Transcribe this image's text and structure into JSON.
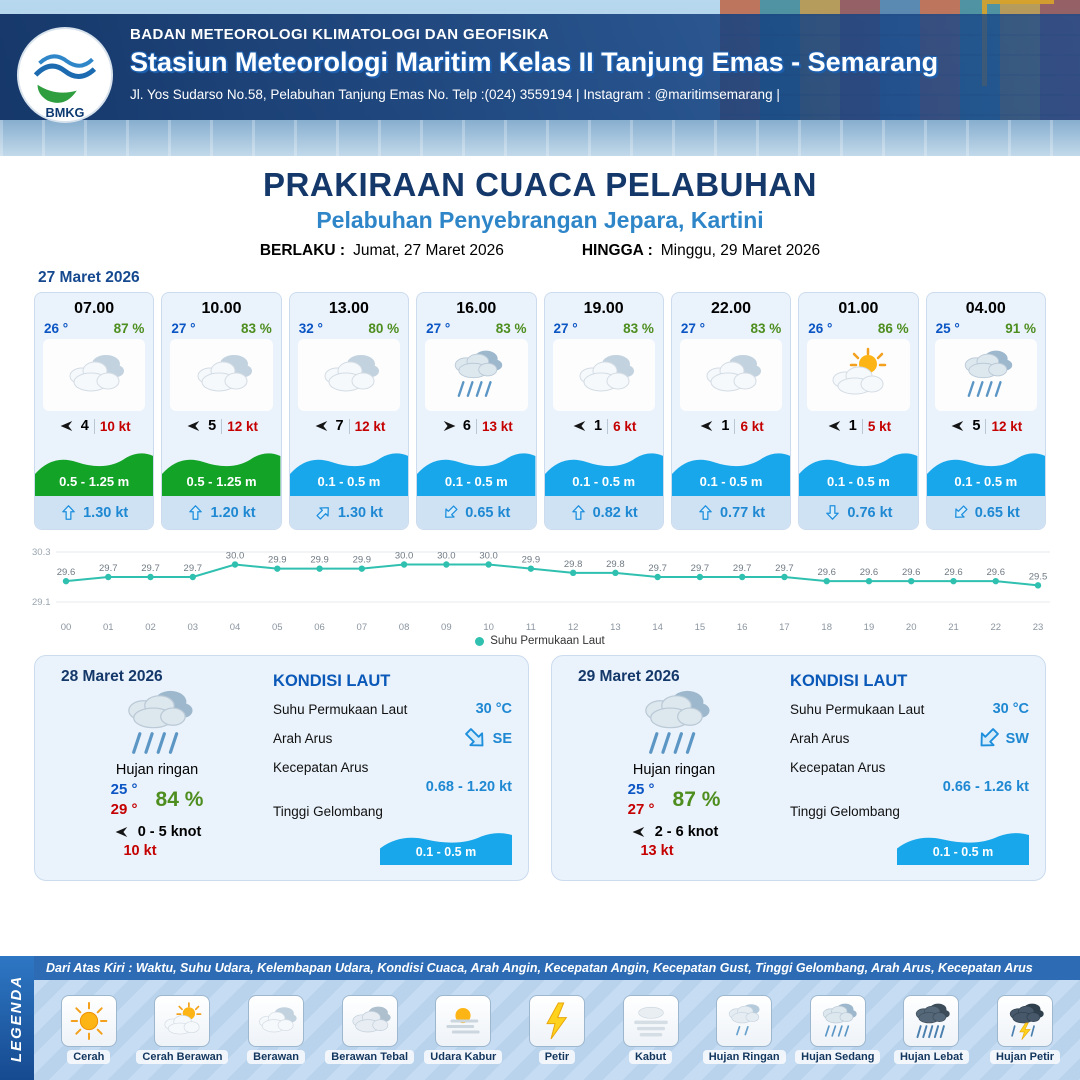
{
  "header": {
    "org": "BADAN METEOROLOGI KLIMATOLOGI DAN GEOFISIKA",
    "station": "Stasiun Meteorologi Maritim Kelas II Tanjung Emas - Semarang",
    "address": "Jl. Yos Sudarso No.58, Pelabuhan Tanjung Emas No. Telp :(024) 3559194 | Instagram : @maritimsemarang |",
    "logo_label": "BMKG"
  },
  "title": {
    "main": "PRAKIRAAN CUACA PELABUHAN",
    "subtitle": "Pelabuhan Penyebrangan Jepara, Kartini",
    "berlaku_label": "BERLAKU :",
    "berlaku_value": "Jumat, 27 Maret 2026",
    "hingga_label": "HINGGA :",
    "hingga_value": "Minggu, 29 Maret 2026"
  },
  "forecast_date": "27 Maret 2026",
  "cards": [
    {
      "time": "07.00",
      "temp": "26 °",
      "humidity": "87 %",
      "icon": "berawan",
      "wind_speed": "4",
      "gust": "10 kt",
      "wind_deg": 180,
      "wave": "0.5 - 1.25 m",
      "wave_color": "green",
      "current": "1.30 kt",
      "current_deg": 0
    },
    {
      "time": "10.00",
      "temp": "27 °",
      "humidity": "83 %",
      "icon": "berawan",
      "wind_speed": "5",
      "gust": "12 kt",
      "wind_deg": 180,
      "wave": "0.5 - 1.25 m",
      "wave_color": "green",
      "current": "1.20 kt",
      "current_deg": 0
    },
    {
      "time": "13.00",
      "temp": "32 °",
      "humidity": "80 %",
      "icon": "berawan",
      "wind_speed": "7",
      "gust": "12 kt",
      "wind_deg": 180,
      "wave": "0.1 - 0.5 m",
      "wave_color": "blue",
      "current": "1.30 kt",
      "current_deg": 45
    },
    {
      "time": "16.00",
      "temp": "27 °",
      "humidity": "83 %",
      "icon": "hujan-sedang",
      "wind_speed": "6",
      "gust": "13 kt",
      "wind_deg": 0,
      "wave": "0.1 - 0.5 m",
      "wave_color": "blue",
      "current": "0.65 kt",
      "current_deg": 225
    },
    {
      "time": "19.00",
      "temp": "27 °",
      "humidity": "83 %",
      "icon": "berawan",
      "wind_speed": "1",
      "gust": "6 kt",
      "wind_deg": 180,
      "wave": "0.1 - 0.5 m",
      "wave_color": "blue",
      "current": "0.82 kt",
      "current_deg": 0
    },
    {
      "time": "22.00",
      "temp": "27 °",
      "humidity": "83 %",
      "icon": "berawan",
      "wind_speed": "1",
      "gust": "6 kt",
      "wind_deg": 180,
      "wave": "0.1 - 0.5 m",
      "wave_color": "blue",
      "current": "0.77 kt",
      "current_deg": 0
    },
    {
      "time": "01.00",
      "temp": "26 °",
      "humidity": "86 %",
      "icon": "cerah-berawan",
      "wind_speed": "1",
      "gust": "5 kt",
      "wind_deg": 180,
      "wave": "0.1 - 0.5 m",
      "wave_color": "blue",
      "current": "0.76 kt",
      "current_deg": 180
    },
    {
      "time": "04.00",
      "temp": "25 °",
      "humidity": "91 %",
      "icon": "hujan-sedang",
      "wind_speed": "5",
      "gust": "12 kt",
      "wind_deg": 180,
      "wave": "0.1 - 0.5 m",
      "wave_color": "blue",
      "current": "0.65 kt",
      "current_deg": 225
    }
  ],
  "chart_data": {
    "type": "line",
    "x": [
      "00",
      "01",
      "02",
      "03",
      "04",
      "05",
      "06",
      "07",
      "08",
      "09",
      "10",
      "11",
      "12",
      "13",
      "14",
      "15",
      "16",
      "17",
      "18",
      "19",
      "20",
      "21",
      "22",
      "23"
    ],
    "values": [
      29.6,
      29.7,
      29.7,
      29.7,
      30.0,
      29.9,
      29.9,
      29.9,
      30.0,
      30.0,
      30.0,
      29.9,
      29.8,
      29.8,
      29.7,
      29.7,
      29.7,
      29.7,
      29.6,
      29.6,
      29.6,
      29.6,
      29.6,
      29.5
    ],
    "ylim": [
      29.1,
      30.3
    ],
    "series_label": "Suhu Permukaan Laut",
    "color": "#2fc0b0",
    "grid": "top-bottom-horizontal",
    "legend_position": "bottom-center"
  },
  "days": [
    {
      "date": "28 Maret 2026",
      "icon": "hujan-sedang",
      "condition": "Hujan ringan",
      "temp_min": "25 °",
      "temp_max": "29 °",
      "humidity": "84 %",
      "wind_range": "0  - 5 knot",
      "wind_deg": 180,
      "gust": "10 kt",
      "sea": {
        "title": "KONDISI LAUT",
        "sst_label": "Suhu Permukaan Laut",
        "sst": "30 °C",
        "arah_label": "Arah Arus",
        "arah": "SE",
        "arah_deg": 135,
        "kec_label": "Kecepatan Arus",
        "kec": "0.68 - 1.20 kt",
        "gel_label": "Tinggi Gelombang",
        "gel": "0.1 - 0.5 m"
      }
    },
    {
      "date": "29 Maret 2026",
      "icon": "hujan-sedang",
      "condition": "Hujan ringan",
      "temp_min": "25 °",
      "temp_max": "27 °",
      "humidity": "87 %",
      "wind_range": "2  - 6 knot",
      "wind_deg": 180,
      "gust": "13 kt",
      "sea": {
        "title": "KONDISI LAUT",
        "sst_label": "Suhu Permukaan Laut",
        "sst": "30 °C",
        "arah_label": "Arah Arus",
        "arah": "SW",
        "arah_deg": 225,
        "kec_label": "Kecepatan Arus",
        "kec": "0.66 - 1.26 kt",
        "gel_label": "Tinggi Gelombang",
        "gel": "0.1 - 0.5 m"
      }
    }
  ],
  "legend": {
    "title": "LEGENDA",
    "note": "Dari Atas Kiri : Waktu, Suhu Udara, Kelembapan Udara, Kondisi Cuaca, Arah Angin, Kecepatan Angin, Kecepatan Gust, Tinggi Gelombang, Arah Arus, Kecepatan Arus",
    "items": [
      {
        "label": "Cerah",
        "icon": "cerah"
      },
      {
        "label": "Cerah Berawan",
        "icon": "cerah-berawan"
      },
      {
        "label": "Berawan",
        "icon": "berawan"
      },
      {
        "label": "Berawan Tebal",
        "icon": "berawan-tebal"
      },
      {
        "label": "Udara Kabur",
        "icon": "udara-kabur"
      },
      {
        "label": "Petir",
        "icon": "petir"
      },
      {
        "label": "Kabut",
        "icon": "kabut"
      },
      {
        "label": "Hujan Ringan",
        "icon": "hujan-ringan"
      },
      {
        "label": "Hujan Sedang",
        "icon": "hujan-sedang"
      },
      {
        "label": "Hujan Lebat",
        "icon": "hujan-lebat"
      },
      {
        "label": "Hujan Petir",
        "icon": "hujan-petir"
      }
    ]
  },
  "colors": {
    "navy": "#14386a",
    "accent_blue": "#2e86c8",
    "wave_green": "#12a327",
    "wave_blue": "#18a7ea",
    "temp_blue": "#0b55c4",
    "humidity_green": "#4e8e1f",
    "gust_red": "#c40000",
    "chart_teal": "#2fc0b0"
  }
}
